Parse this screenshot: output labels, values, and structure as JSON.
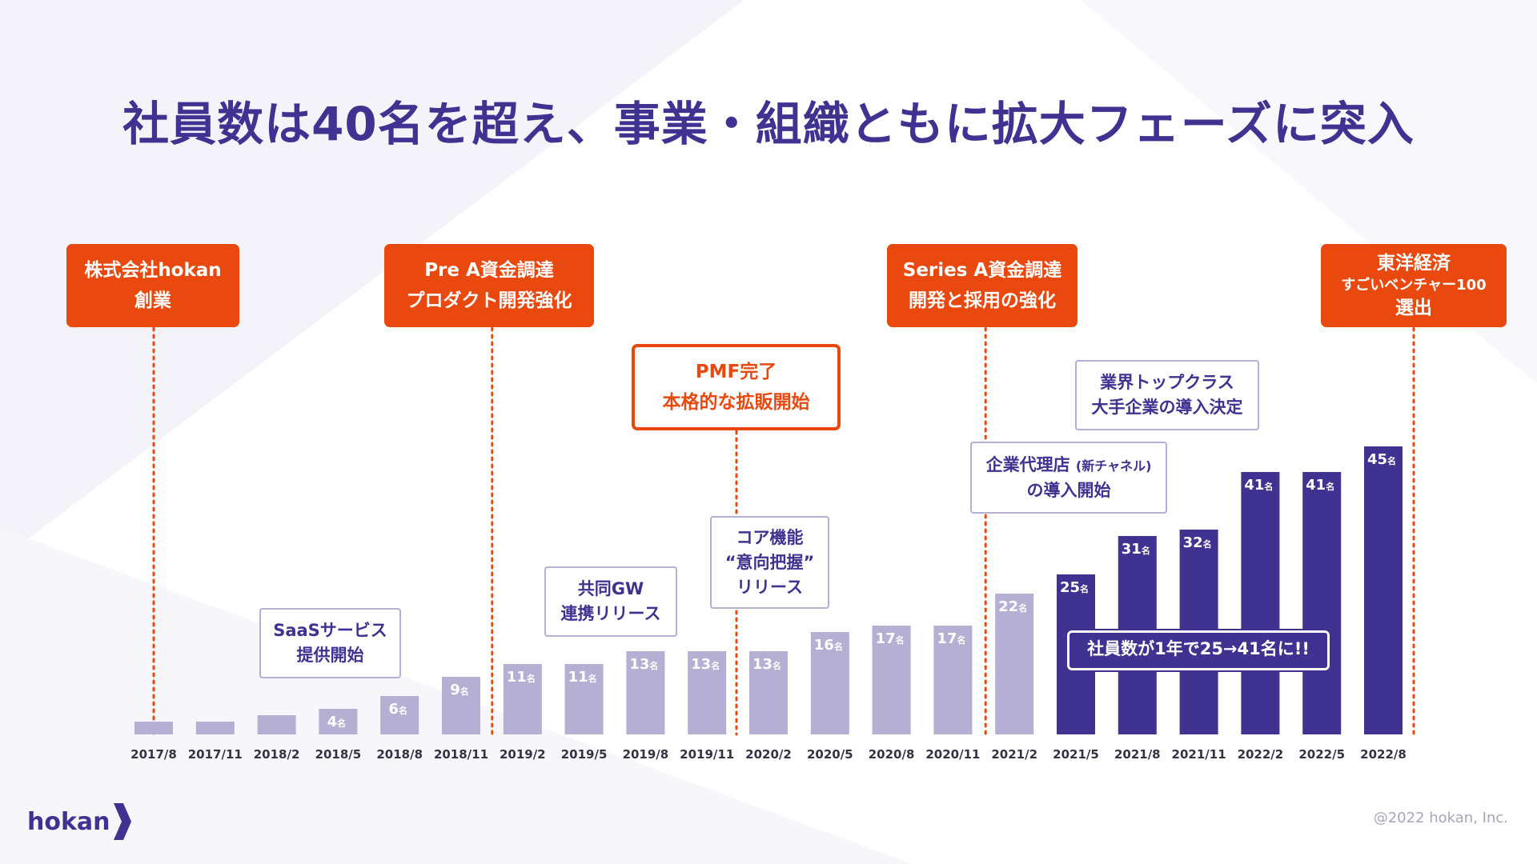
{
  "title": "社員数は40名を超え、事業・組織ともに拡大フェーズに突入",
  "chart_data": {
    "type": "bar",
    "categories": [
      "2017/8",
      "2017/11",
      "2018/2",
      "2018/5",
      "2018/8",
      "2018/11",
      "2019/2",
      "2019/5",
      "2019/8",
      "2019/11",
      "2020/2",
      "2020/5",
      "2020/8",
      "2020/11",
      "2021/2",
      "2021/5",
      "2021/8",
      "2021/11",
      "2022/2",
      "2022/5",
      "2022/8"
    ],
    "values": [
      2,
      2,
      3,
      4,
      6,
      9,
      11,
      11,
      13,
      13,
      13,
      16,
      17,
      17,
      22,
      25,
      31,
      32,
      41,
      41,
      45
    ],
    "labels": [
      "",
      "",
      "",
      "4",
      "6",
      "9",
      "11",
      "11",
      "13",
      "13",
      "13",
      "16",
      "17",
      "17",
      "22",
      "25",
      "31",
      "32",
      "41",
      "41",
      "45"
    ],
    "unit": "名",
    "highlight_from_index": 15,
    "colors": {
      "light": "#b4afd3",
      "dark": "#3f3290",
      "accent": "#e9480e"
    },
    "ylim": [
      0,
      45
    ]
  },
  "milestones": [
    {
      "line1": "株式会社hokan",
      "line2": "創業",
      "category_index": 0
    },
    {
      "line1": "Pre A資金調達",
      "line2": "プロダクト開発強化",
      "category_index": 6
    },
    {
      "line1": "PMF完了",
      "line2": "本格的な拡販開始",
      "category_index": 10
    },
    {
      "line1": "Series A資金調達",
      "line2": "開発と採用の強化",
      "category_index": 14
    },
    {
      "line1": "東洋経済",
      "line2": "すごいベンチャー100",
      "line3": "選出",
      "category_index": 20
    }
  ],
  "callouts": [
    {
      "line1": "SaaSサービス",
      "line2": "提供開始"
    },
    {
      "line1": "共同GW",
      "line2": "連携リリース"
    },
    {
      "line1": "コア機能",
      "line2": "“意向把握”",
      "line3": "リリース"
    },
    {
      "line1": "企業代理店",
      "line1_small": "(新チャネル)",
      "line2": "の導入開始"
    },
    {
      "line1": "業界トップクラス",
      "line2": "大手企業の導入決定"
    }
  ],
  "highlight_text": "社員数が1年で25→41名に!!",
  "logo_text": "hokan",
  "copyright": "@2022 hokan, Inc."
}
